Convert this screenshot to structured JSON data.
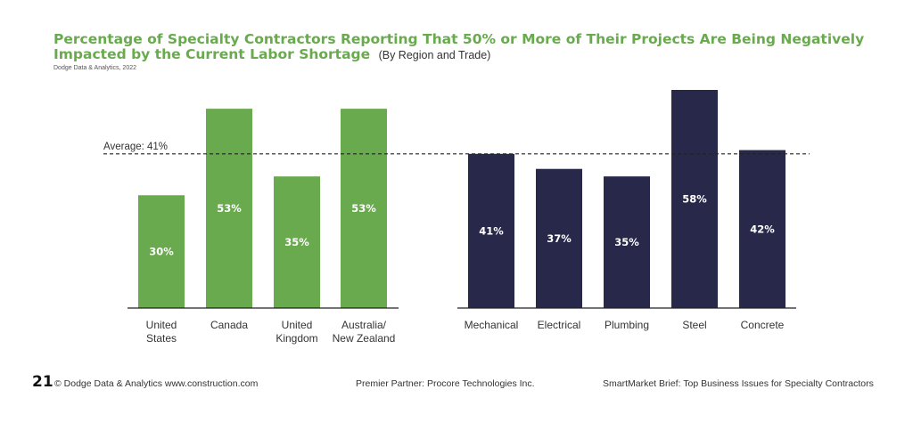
{
  "title": "Percentage of Specialty Contractors Reporting That 50% or More of Their Projects Are Being Negatively Impacted by the Current Labor Shortage",
  "subtitle": "(By Region and Trade)",
  "source": "Dodge Data & Analytics, 2022",
  "footer": {
    "page_number": "21",
    "copyright": "© Dodge Data & Analytics  www.construction.com",
    "partner": "Premier Partner: Procore Technologies Inc.",
    "brief": "SmartMarket Brief: Top Business Issues for Specialty Contractors"
  },
  "colors": {
    "region": "#6aaa4f",
    "trade": "#28284a",
    "title": "#6aaa4f"
  },
  "chart_data": {
    "type": "bar",
    "categories": [
      "United\nStates",
      "Canada",
      "United\nKingdom",
      "Australia/\nNew Zealand",
      "Mechanical",
      "Electrical",
      "Plumbing",
      "Steel",
      "Concrete"
    ],
    "values": [
      30,
      53,
      35,
      53,
      41,
      37,
      35,
      58,
      42
    ],
    "data_labels": [
      "30%",
      "53%",
      "35%",
      "53%",
      "41%",
      "37%",
      "35%",
      "58%",
      "42%"
    ],
    "groups": [
      "region",
      "region",
      "region",
      "region",
      "trade",
      "trade",
      "trade",
      "trade",
      "trade"
    ],
    "reference_line": {
      "value": 41,
      "label": "Average: 41%"
    },
    "ylim": [
      0,
      60
    ],
    "grid": false,
    "legend": "none"
  }
}
